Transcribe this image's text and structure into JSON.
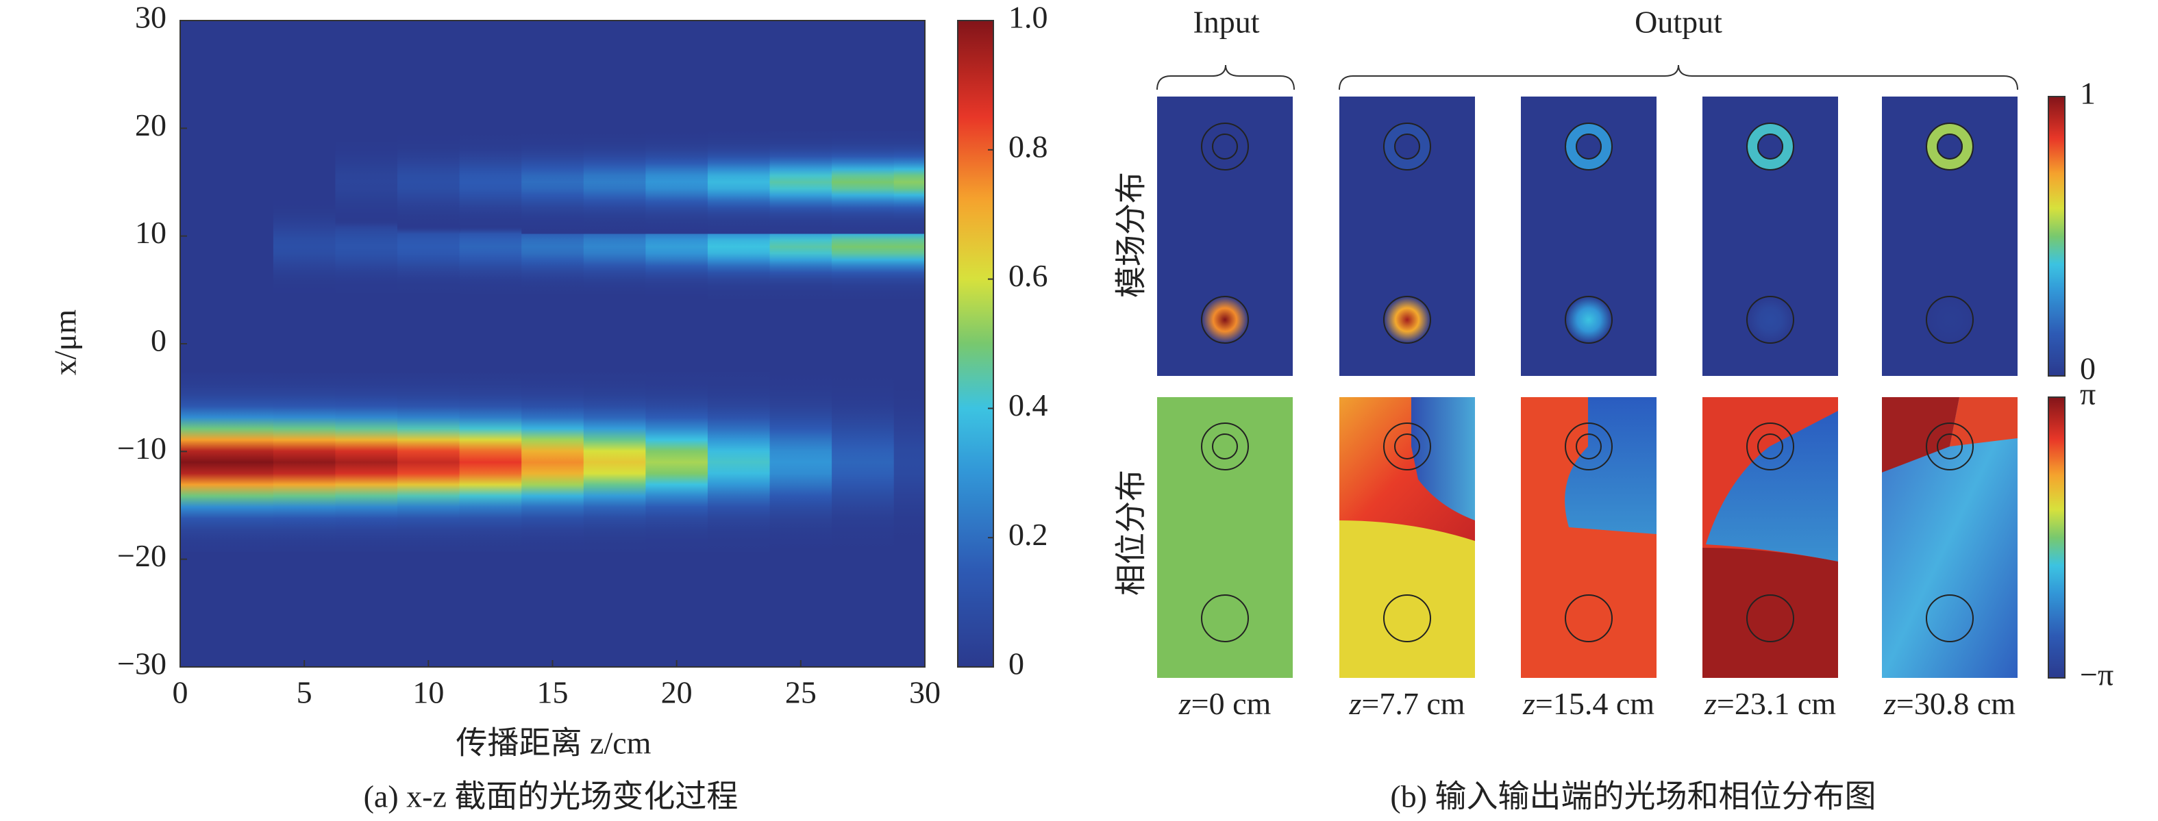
{
  "chart_data": [
    {
      "type": "heatmap",
      "title": "(a) x-z 截面的光场变化过程",
      "xlabel": "传播距离 z/cm",
      "ylabel": "x/μm",
      "xlim": [
        0,
        30
      ],
      "xticks": [
        0,
        5,
        10,
        15,
        20,
        25,
        30
      ],
      "ylim": [
        -30,
        30
      ],
      "yticks": [
        {
          "value": -30,
          "label": "−30"
        },
        {
          "value": -20,
          "label": "−20"
        },
        {
          "value": -10,
          "label": "−10"
        },
        0,
        10,
        20,
        30
      ],
      "z": [
        0,
        2.5,
        5,
        7.5,
        10,
        12.5,
        15,
        17.5,
        20,
        22.5,
        25,
        27.5,
        30
      ],
      "beams": [
        {
          "x": -11,
          "values": [
            1,
            1,
            0.98,
            0.95,
            0.9,
            0.85,
            0.75,
            0.65,
            0.55,
            0.42,
            0.3,
            0.18,
            0.08
          ]
        },
        {
          "x": 9,
          "values": [
            0,
            0,
            0.1,
            0.12,
            0.15,
            0.18,
            0.22,
            0.26,
            0.32,
            0.4,
            0.45,
            0.5,
            0.5
          ]
        },
        {
          "x": 15,
          "values": [
            0,
            0,
            0,
            0.05,
            0.1,
            0.15,
            0.2,
            0.24,
            0.3,
            0.38,
            0.45,
            0.5,
            0.52
          ]
        }
      ],
      "clim": [
        0,
        1
      ],
      "cticks": [
        0,
        0.2,
        0.4,
        0.6,
        0.8,
        {
          "value": 1,
          "label": "1.0"
        }
      ]
    },
    {
      "type": "field-panels",
      "title": "(b) 输入输出端的光场和相位分布图",
      "group_labels": [
        "Input",
        "Output"
      ],
      "row_labels": [
        "模场分布",
        "相位分布"
      ],
      "columns": [
        "z=0 cm",
        "z=7.7 cm",
        "z=15.4 cm",
        "z=23.1 cm",
        "z=30.8 cm"
      ],
      "spot_peak": [
        1,
        0.95,
        0.4,
        0.08,
        0.02
      ],
      "ring_peak": [
        0,
        0.1,
        0.3,
        0.42,
        0.55
      ],
      "clim": [
        0,
        1
      ],
      "cticks": [
        1,
        0
      ],
      "phase_lim": [
        -3.14159,
        3.14159
      ],
      "phase_ticks": [
        {
          "value": 3.14159,
          "label": "π"
        },
        {
          "value": -3.14159,
          "label": "−π"
        }
      ]
    }
  ]
}
